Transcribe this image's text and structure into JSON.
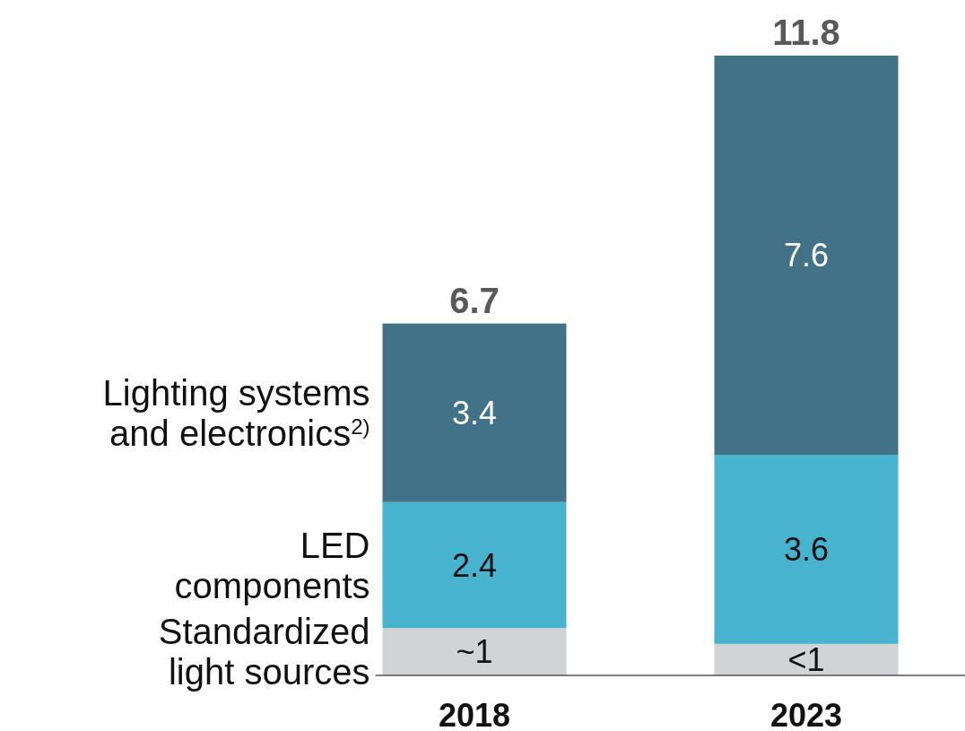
{
  "chart_data": {
    "type": "bar",
    "stacked": true,
    "categories": [
      "2018",
      "2023"
    ],
    "series": [
      {
        "name": "Standardized light sources",
        "color": "#d1d3d4",
        "values": [
          0.9,
          0.6
        ],
        "value_labels": [
          "~1",
          "<1"
        ]
      },
      {
        "name": "LED components",
        "color": "#47b3ce",
        "values": [
          2.4,
          3.6
        ],
        "value_labels": [
          "2.4",
          "3.6"
        ]
      },
      {
        "name": "Lighting systems and electronics$^{2)}$",
        "color": "#427287",
        "values": [
          3.4,
          7.6
        ],
        "value_labels": [
          "3.4",
          "7.6"
        ]
      }
    ],
    "totals": [
      "6.7",
      "11.8"
    ]
  }
}
